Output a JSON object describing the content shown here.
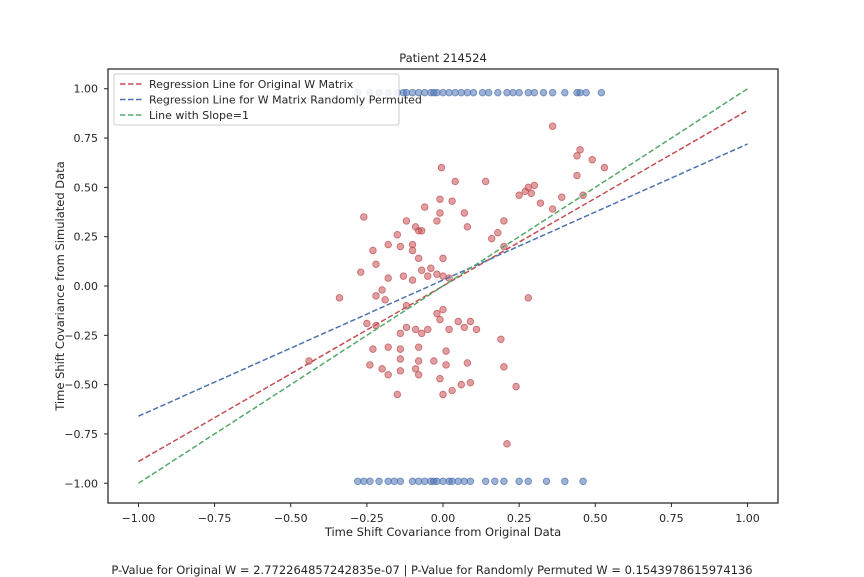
{
  "chart_data": {
    "type": "scatter",
    "title": "Patient 214524",
    "xlabel": "Time Shift Covariance from Original Data",
    "ylabel": "Time Shift Covariance from Simulated Data",
    "xlim": [
      -1.1,
      1.1
    ],
    "ylim": [
      -1.1,
      1.1
    ],
    "x_ticks": [
      -1.0,
      -0.75,
      -0.5,
      -0.25,
      0.0,
      0.25,
      0.5,
      0.75,
      1.0
    ],
    "x_tick_labels": [
      "−1.00",
      "−0.75",
      "−0.50",
      "−0.25",
      "0.00",
      "0.25",
      "0.50",
      "0.75",
      "1.00"
    ],
    "y_ticks": [
      -1.0,
      -0.75,
      -0.5,
      -0.25,
      0.0,
      0.25,
      0.5,
      0.75,
      1.0
    ],
    "y_tick_labels": [
      "−1.00",
      "−0.75",
      "−0.50",
      "−0.25",
      "0.00",
      "0.25",
      "0.50",
      "0.75",
      "1.00"
    ],
    "grid": false,
    "legend_position": "top-left",
    "lines": [
      {
        "name": "Regression Line for Original W Matrix",
        "color": "#c44e52",
        "dash": true,
        "x": [
          -1.0,
          1.0
        ],
        "y": [
          -0.89,
          0.89
        ]
      },
      {
        "name": "Regression Line for W Matrix Randomly Permuted",
        "color": "#4c72b0",
        "dash": true,
        "x": [
          -1.0,
          1.0
        ],
        "y": [
          -0.66,
          0.72
        ]
      },
      {
        "name": "Line with Slope=1",
        "color": "#55a868",
        "dash": true,
        "x": [
          -1.0,
          1.0
        ],
        "y": [
          -1.0,
          1.0
        ]
      }
    ],
    "scatter_series": [
      {
        "color": "#c44e52",
        "points": [
          [
            0.36,
            0.81
          ],
          [
            0.45,
            0.69
          ],
          [
            0.44,
            0.66
          ],
          [
            0.49,
            0.64
          ],
          [
            0.53,
            0.6
          ],
          [
            0.44,
            0.56
          ],
          [
            -0.005,
            0.6
          ],
          [
            0.14,
            0.53
          ],
          [
            0.04,
            0.53
          ],
          [
            0.3,
            0.51
          ],
          [
            0.28,
            0.5
          ],
          [
            0.27,
            0.48
          ],
          [
            0.25,
            0.46
          ],
          [
            0.29,
            0.47
          ],
          [
            0.39,
            0.45
          ],
          [
            0.46,
            0.46
          ],
          [
            0.32,
            0.42
          ],
          [
            0.36,
            0.39
          ],
          [
            -0.01,
            0.44
          ],
          [
            0.03,
            0.43
          ],
          [
            0.07,
            0.37
          ],
          [
            -0.06,
            0.4
          ],
          [
            -0.01,
            0.37
          ],
          [
            0.2,
            0.33
          ],
          [
            0.18,
            0.27
          ],
          [
            0.16,
            0.24
          ],
          [
            0.08,
            0.3
          ],
          [
            -0.26,
            0.35
          ],
          [
            -0.12,
            0.33
          ],
          [
            -0.02,
            0.33
          ],
          [
            -0.07,
            0.28
          ],
          [
            -0.08,
            0.28
          ],
          [
            -0.09,
            0.3
          ],
          [
            -0.15,
            0.26
          ],
          [
            -0.18,
            0.21
          ],
          [
            -0.1,
            0.21
          ],
          [
            -0.23,
            0.18
          ],
          [
            -0.14,
            0.2
          ],
          [
            -0.1,
            0.18
          ],
          [
            0.2,
            0.2
          ],
          [
            -0.08,
            0.14
          ],
          [
            0.0,
            0.14
          ],
          [
            -0.27,
            0.07
          ],
          [
            -0.22,
            0.11
          ],
          [
            -0.07,
            0.08
          ],
          [
            -0.04,
            0.09
          ],
          [
            -0.02,
            0.06
          ],
          [
            -0.05,
            0.05
          ],
          [
            0.0,
            0.05
          ],
          [
            0.02,
            0.04
          ],
          [
            -0.1,
            0.03
          ],
          [
            -0.18,
            0.04
          ],
          [
            -0.13,
            0.05
          ],
          [
            -0.2,
            -0.02
          ],
          [
            -0.22,
            -0.05
          ],
          [
            -0.34,
            -0.06
          ],
          [
            -0.19,
            -0.07
          ],
          [
            -0.12,
            -0.1
          ],
          [
            0.0,
            -0.12
          ],
          [
            -0.02,
            -0.14
          ],
          [
            -0.01,
            -0.17
          ],
          [
            0.05,
            -0.18
          ],
          [
            0.07,
            -0.21
          ],
          [
            -0.09,
            -0.22
          ],
          [
            -0.05,
            -0.22
          ],
          [
            0.02,
            -0.22
          ],
          [
            0.11,
            -0.22
          ],
          [
            -0.12,
            -0.21
          ],
          [
            -0.14,
            -0.24
          ],
          [
            -0.22,
            -0.2
          ],
          [
            -0.25,
            -0.19
          ],
          [
            0.19,
            -0.27
          ],
          [
            0.28,
            -0.06
          ],
          [
            0.09,
            -0.18
          ],
          [
            -0.07,
            -0.24
          ],
          [
            -0.23,
            -0.32
          ],
          [
            -0.18,
            -0.31
          ],
          [
            -0.14,
            -0.32
          ],
          [
            -0.08,
            -0.31
          ],
          [
            0.01,
            -0.33
          ],
          [
            -0.14,
            -0.37
          ],
          [
            -0.08,
            -0.38
          ],
          [
            -0.09,
            -0.42
          ],
          [
            -0.03,
            -0.38
          ],
          [
            0.01,
            -0.4
          ],
          [
            0.08,
            -0.39
          ],
          [
            0.2,
            -0.41
          ],
          [
            -0.44,
            -0.38
          ],
          [
            -0.24,
            -0.4
          ],
          [
            -0.2,
            -0.42
          ],
          [
            -0.14,
            -0.43
          ],
          [
            -0.18,
            -0.45
          ],
          [
            -0.08,
            -0.45
          ],
          [
            -0.01,
            -0.47
          ],
          [
            0.06,
            -0.5
          ],
          [
            0.09,
            -0.49
          ],
          [
            0.03,
            -0.53
          ],
          [
            0.0,
            -0.55
          ],
          [
            0.24,
            -0.51
          ],
          [
            -0.15,
            -0.55
          ],
          [
            0.21,
            -0.8
          ]
        ]
      },
      {
        "color": "#4c72b0",
        "points": [
          [
            -0.28,
            0.98
          ],
          [
            -0.24,
            0.98
          ],
          [
            -0.21,
            0.98
          ],
          [
            -0.18,
            0.98
          ],
          [
            -0.15,
            0.98
          ],
          [
            -0.13,
            0.98
          ],
          [
            -0.1,
            0.98
          ],
          [
            -0.08,
            0.98
          ],
          [
            -0.06,
            0.98
          ],
          [
            -0.04,
            0.98
          ],
          [
            -0.02,
            0.98
          ],
          [
            0.0,
            0.98
          ],
          [
            0.02,
            0.98
          ],
          [
            0.04,
            0.98
          ],
          [
            0.06,
            0.98
          ],
          [
            0.1,
            0.98
          ],
          [
            0.13,
            0.98
          ],
          [
            0.15,
            0.98
          ],
          [
            0.18,
            0.98
          ],
          [
            0.21,
            0.98
          ],
          [
            0.25,
            0.98
          ],
          [
            0.28,
            0.98
          ],
          [
            0.3,
            0.98
          ],
          [
            0.33,
            0.98
          ],
          [
            0.36,
            0.98
          ],
          [
            0.4,
            0.98
          ],
          [
            0.44,
            0.98
          ],
          [
            0.47,
            0.98
          ],
          [
            0.52,
            0.98
          ],
          [
            -0.12,
            0.98
          ],
          [
            -0.03,
            0.98
          ],
          [
            0.08,
            0.98
          ],
          [
            0.23,
            0.98
          ],
          [
            0.45,
            0.98
          ],
          [
            -0.28,
            -0.99
          ],
          [
            -0.26,
            -0.99
          ],
          [
            -0.24,
            -0.99
          ],
          [
            -0.21,
            -0.99
          ],
          [
            -0.18,
            -0.99
          ],
          [
            -0.14,
            -0.99
          ],
          [
            -0.1,
            -0.99
          ],
          [
            -0.08,
            -0.99
          ],
          [
            -0.06,
            -0.99
          ],
          [
            -0.04,
            -0.99
          ],
          [
            -0.02,
            -0.99
          ],
          [
            0.0,
            -0.99
          ],
          [
            0.02,
            -0.99
          ],
          [
            0.05,
            -0.99
          ],
          [
            0.07,
            -0.99
          ],
          [
            0.09,
            -0.99
          ],
          [
            0.14,
            -0.99
          ],
          [
            0.17,
            -0.99
          ],
          [
            0.2,
            -0.99
          ],
          [
            0.25,
            -0.99
          ],
          [
            0.28,
            -0.99
          ],
          [
            0.34,
            -0.99
          ],
          [
            0.4,
            -0.99
          ],
          [
            0.46,
            -0.99
          ],
          [
            -0.16,
            -0.99
          ],
          [
            -0.03,
            -0.99
          ],
          [
            0.03,
            -0.99
          ]
        ]
      }
    ]
  },
  "footer_text": "P-Value for Original W = 2.772264857242835e-07 | P-Value for Randomly Permuted W = 0.1543978615974136"
}
